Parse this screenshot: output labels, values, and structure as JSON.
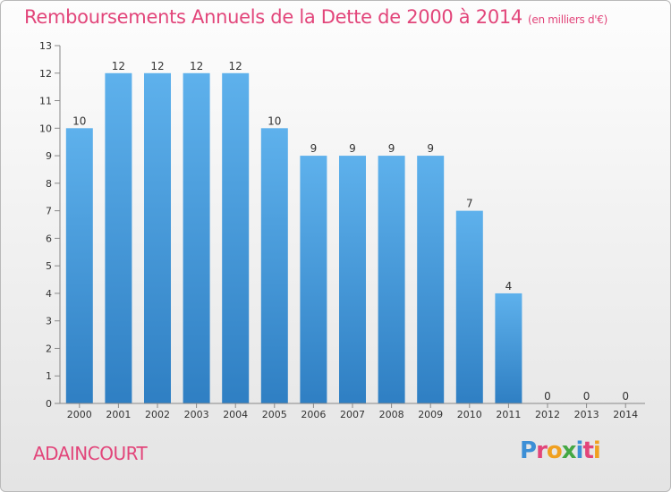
{
  "chart_data": {
    "type": "bar",
    "title": "Remboursements Annuels de la Dette de 2000 à 2014",
    "subtitle": "(en milliers d'€)",
    "categories": [
      "2000",
      "2001",
      "2002",
      "2003",
      "2004",
      "2005",
      "2006",
      "2007",
      "2008",
      "2009",
      "2010",
      "2011",
      "2012",
      "2013",
      "2014"
    ],
    "values": [
      10,
      12,
      12,
      12,
      12,
      10,
      9,
      9,
      9,
      9,
      7,
      4,
      0,
      0,
      0
    ],
    "ylim": [
      0,
      13
    ],
    "yticks": [
      0,
      1,
      2,
      3,
      4,
      5,
      6,
      7,
      8,
      9,
      10,
      11,
      12,
      13
    ],
    "grid": false,
    "bar_color": "#4a9fe0",
    "title_color": "#e2457a"
  },
  "footer": {
    "commune": "ADAINCOURT",
    "logo": "Proxiti"
  }
}
